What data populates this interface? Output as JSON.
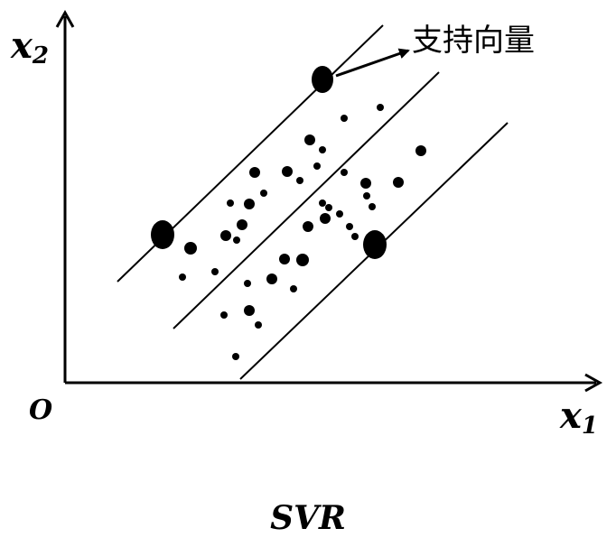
{
  "axes": {
    "x_label": "x",
    "x_sub": "1",
    "y_label": "x",
    "y_sub": "2",
    "origin_label": "O"
  },
  "annotation": {
    "support_vector_label": "支持向量"
  },
  "caption": "SVR"
}
